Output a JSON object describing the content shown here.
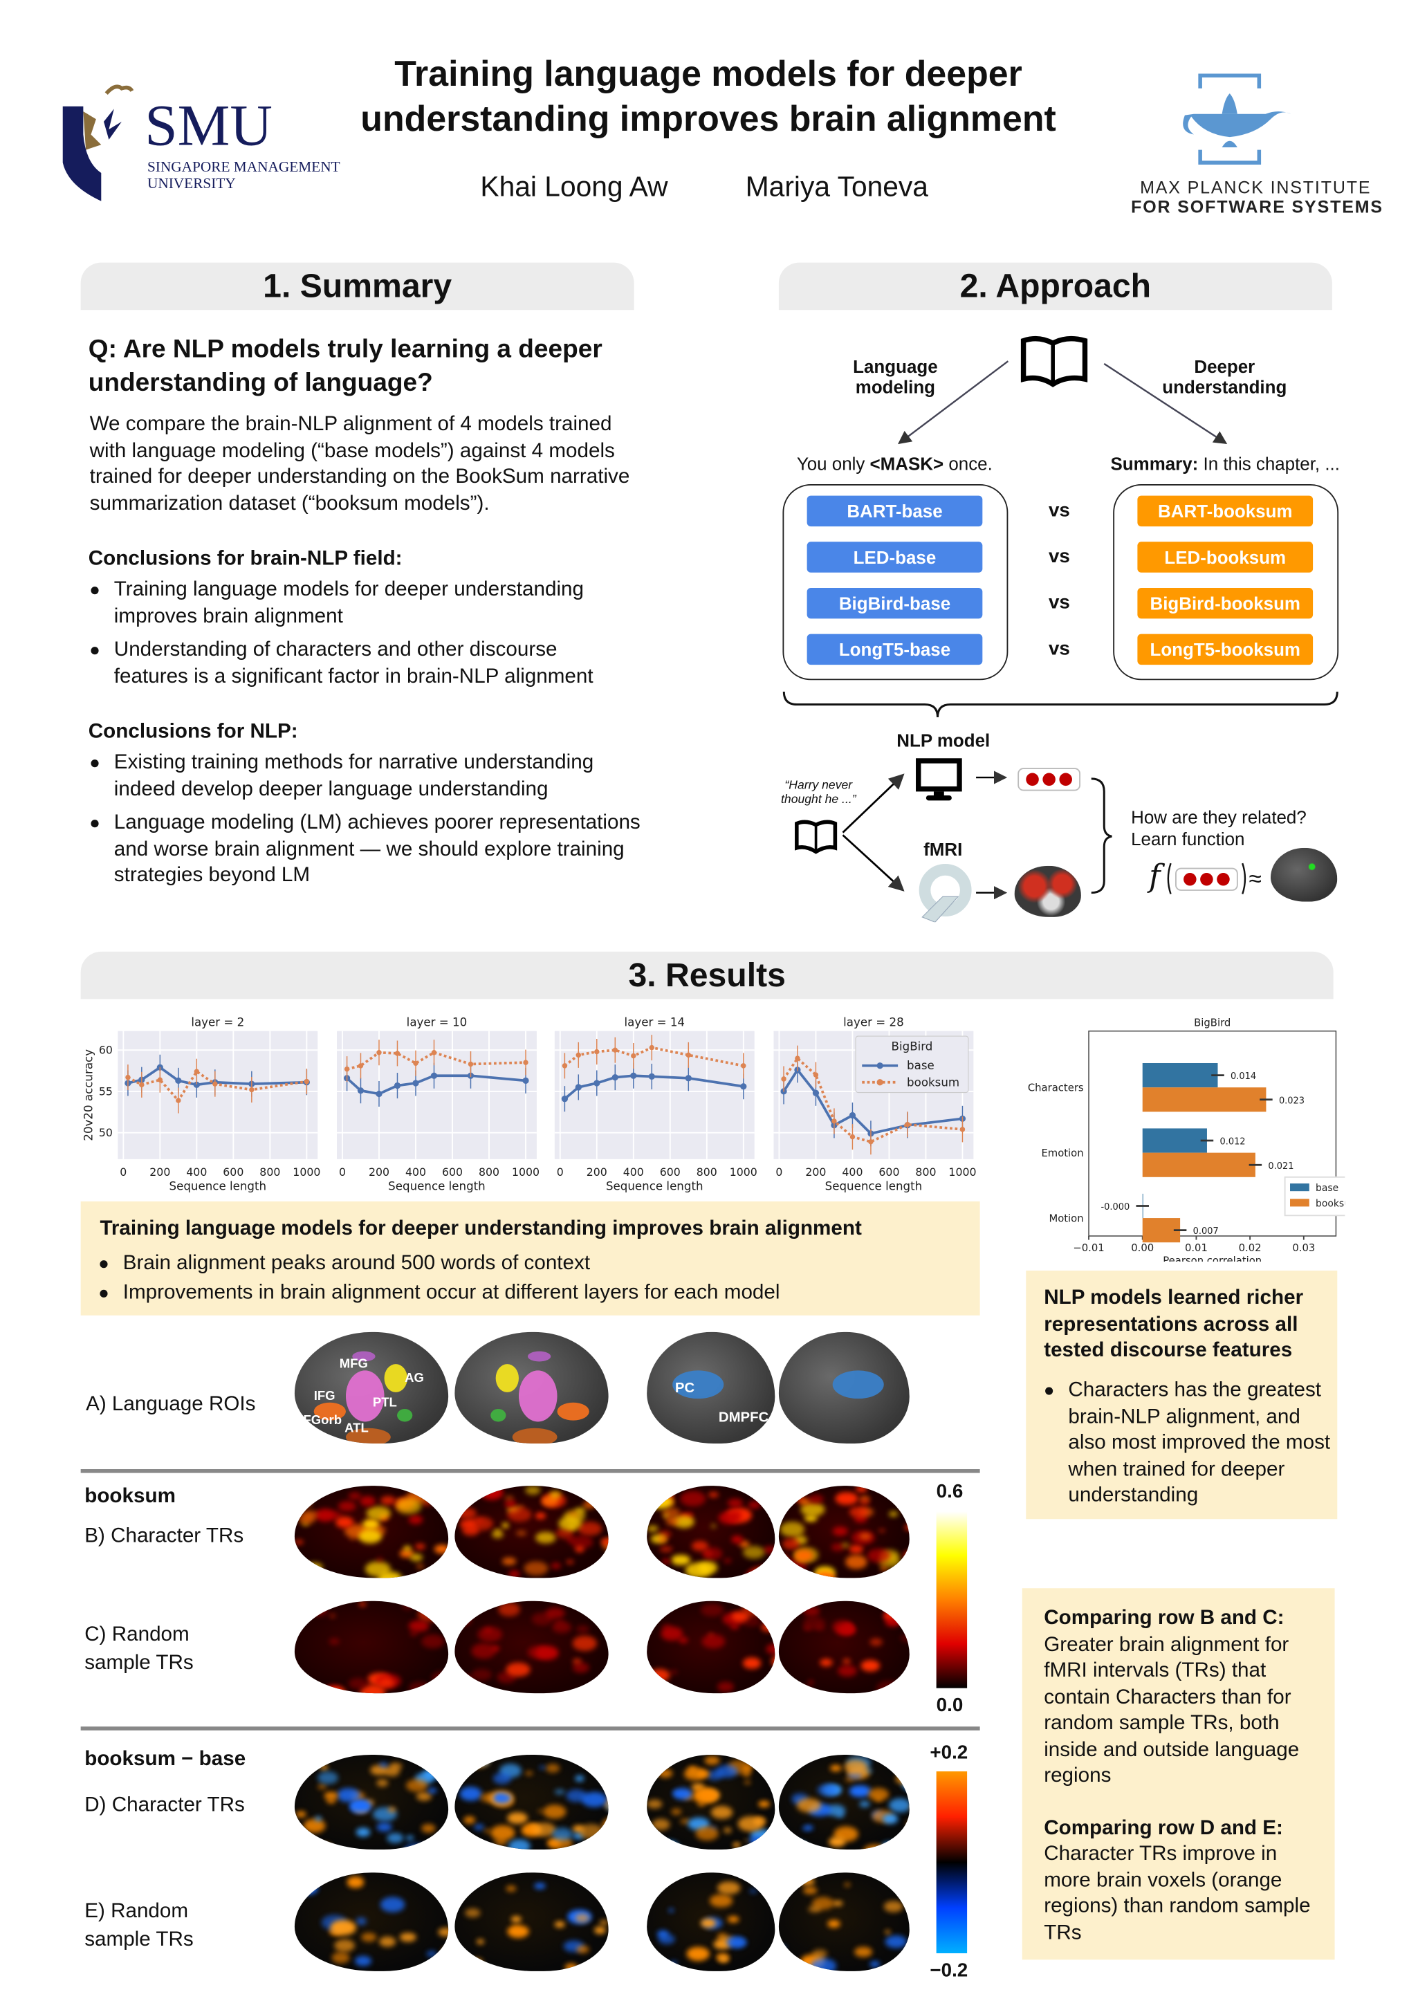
{
  "header": {
    "title_line1": "Training language models for deeper",
    "title_line2": "understanding improves brain alignment",
    "authors": [
      "Khai Loong Aw",
      "Mariya Toneva"
    ],
    "logo_left": {
      "name": "SMU",
      "sub1": "SINGAPORE MANAGEMENT",
      "sub2": "UNIVERSITY",
      "color": "#151c5c",
      "accent": "#8a6d3b"
    },
    "logo_right": {
      "line1": "MAX PLANCK INSTITUTE",
      "line2": "FOR SOFTWARE SYSTEMS",
      "color": "#5b97d1"
    }
  },
  "summary": {
    "heading": "1. Summary",
    "question": "Q: Are NLP models truly learning a deeper understanding of language?",
    "intro": "We compare the brain-NLP alignment of 4 models trained with language modeling (“base models”) against 4 models trained for deeper understanding on the BookSum narrative summarization dataset (“booksum models”).",
    "brain_heading": "Conclusions for brain-NLP field:",
    "brain_points": [
      "Training language models for deeper understanding improves brain alignment",
      "Understanding of characters and other discourse features is a significant factor in brain-NLP alignment"
    ],
    "nlp_heading": "Conclusions for NLP:",
    "nlp_points": [
      "Existing training methods for narrative understanding indeed develop deeper language understanding",
      "Language modeling (LM) achieves poorer representations and worse brain alignment — we should explore training strategies beyond LM"
    ]
  },
  "approach": {
    "heading": "2. Approach",
    "left_label": "Language modeling",
    "right_label": "Deeper understanding",
    "left_example_pre": "You only ",
    "left_example_mask": "<MASK>",
    "left_example_post": " once.",
    "right_example_bold": "Summary:",
    "right_example_rest": " In this chapter, ...",
    "base_models": [
      "BART-base",
      "LED-base",
      "BigBird-base",
      "LongT5-base"
    ],
    "booksum_models": [
      "BART-booksum",
      "LED-booksum",
      "BigBird-booksum",
      "LongT5-booksum"
    ],
    "vs": "vs",
    "nlp_model": "NLP model",
    "fmri": "fMRI",
    "quote": "“Harry never thought he ...”",
    "relation_line1": "How are they related?",
    "relation_line2": "Learn function",
    "func_symbol": "f",
    "approx": "≈",
    "colors": {
      "base": "#4a86e8",
      "booksum": "#ff9900",
      "dot": "#c00000"
    }
  },
  "results": {
    "heading": "3. Results",
    "finding_title": "Training language models for deeper understanding improves brain alignment",
    "finding_points": [
      "Brain alignment peaks around 500 words of context",
      "Improvements in brain alignment occur at different layers for each model"
    ],
    "box1_title": "NLP models learned richer representations across all tested discourse features",
    "box1_points": [
      "Characters has the greatest brain-NLP alignment, and also most improved the most when trained for deeper understanding"
    ],
    "box2_title1": "Comparing row B and C:",
    "box2_text1": "Greater brain alignment for fMRI intervals (TRs) that contain Characters than for random sample TRs, both inside and outside language regions",
    "box2_title2": "Comparing row D and E:",
    "box2_text2": "Character TRs improve in more brain voxels (orange regions) than random sample TRs",
    "rows": {
      "a": "A) Language ROIs",
      "booksum": "booksum",
      "b": "B) Character TRs",
      "c1": "C) Random",
      "c2": "sample TRs",
      "diff": "booksum − base",
      "d": "D) Character TRs",
      "e1": "E) Random",
      "e2": "sample TRs"
    },
    "roi_labels": [
      "MFG",
      "IFG",
      "IFGorb",
      "ATL",
      "PTL",
      "AG",
      "PC",
      "DMPFC"
    ],
    "colorbar1": {
      "max": "0.6",
      "min": "0.0",
      "colors": [
        "#ffffff",
        "#ffff00",
        "#ff8000",
        "#e00000",
        "#000000"
      ]
    },
    "colorbar2": {
      "max": "+0.2",
      "min": "−0.2",
      "colors": [
        "#ff9900",
        "#ff2000",
        "#000000",
        "#0040ff",
        "#00b0ff"
      ]
    }
  },
  "chart_data": [
    {
      "type": "line",
      "legend_title": "BigBird",
      "legend_placement": "top-right (layer = 28 panel)",
      "xlabel": "Sequence length",
      "ylabel": "20v20 accuracy",
      "x": [
        25,
        100,
        200,
        300,
        400,
        500,
        700,
        1000
      ],
      "xticks": [
        0,
        200,
        400,
        600,
        800,
        1000
      ],
      "yticks": [
        50,
        55,
        60
      ],
      "ylim": [
        46.8,
        62.3
      ],
      "xlim": [
        -30,
        1060
      ],
      "grid": true,
      "series_colors": {
        "base": "#4c72b0",
        "booksum": "#dd8452"
      },
      "panels": [
        {
          "title": "layer = 2",
          "series": [
            {
              "name": "base",
              "values": [
                56.0,
                56.4,
                57.9,
                56.3,
                55.8,
                56.1,
                55.9,
                56.1
              ]
            },
            {
              "name": "booksum",
              "values": [
                56.7,
                55.8,
                56.4,
                53.9,
                57.4,
                55.9,
                55.2,
                56.2
              ]
            }
          ]
        },
        {
          "title": "layer = 10",
          "series": [
            {
              "name": "base",
              "values": [
                56.6,
                55.1,
                54.7,
                55.7,
                56.0,
                56.9,
                56.9,
                56.3
              ]
            },
            {
              "name": "booksum",
              "values": [
                57.7,
                58.1,
                59.7,
                59.6,
                58.4,
                59.7,
                58.3,
                58.5
              ]
            }
          ]
        },
        {
          "title": "layer = 14",
          "series": [
            {
              "name": "base",
              "values": [
                54.1,
                55.5,
                56.0,
                56.7,
                56.9,
                56.8,
                56.6,
                55.6
              ]
            },
            {
              "name": "booksum",
              "values": [
                58.1,
                59.4,
                59.8,
                60.0,
                59.3,
                60.3,
                59.4,
                58.1
              ]
            }
          ]
        },
        {
          "title": "layer = 28",
          "series": [
            {
              "name": "base",
              "values": [
                55.0,
                57.6,
                54.8,
                50.9,
                52.1,
                49.9,
                50.9,
                51.7
              ]
            },
            {
              "name": "booksum",
              "values": [
                56.5,
                59.0,
                57.0,
                51.4,
                49.5,
                48.9,
                51.0,
                50.4
              ]
            }
          ]
        }
      ]
    },
    {
      "type": "bar",
      "orientation": "horizontal",
      "title": "BigBird",
      "xlabel": "Pearson correlation",
      "categories": [
        "Characters",
        "Emotion",
        "Motion"
      ],
      "series": [
        {
          "name": "base",
          "values": [
            0.014,
            0.012,
            -0.0
          ],
          "labels": [
            "0.014",
            "0.012",
            "-0.000"
          ],
          "color": "#3274a1"
        },
        {
          "name": "booksum",
          "values": [
            0.023,
            0.021,
            0.007
          ],
          "labels": [
            "0.023",
            "0.021",
            "0.007"
          ],
          "color": "#e1812c"
        }
      ],
      "xticks": [
        "−0.01",
        "0.00",
        "0.01",
        "0.02",
        "0.03"
      ],
      "xlim": [
        -0.01,
        0.036
      ],
      "legend_placement": "lower-right"
    }
  ]
}
